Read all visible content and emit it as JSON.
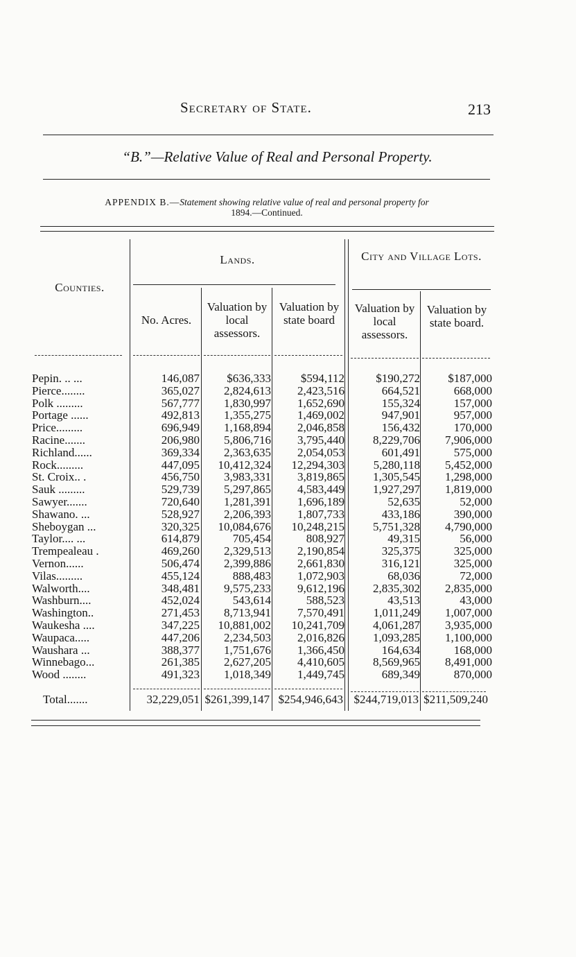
{
  "running_head": "Secretary of State.",
  "page_number": "213",
  "section_title": "“B.”—Relative Value of Real and Personal Property.",
  "caption": {
    "lead": "APPENDIX B.—",
    "text": "Statement showing relative value of real and personal property for",
    "line2": "1894.—Continued."
  },
  "headers": {
    "counties": "Counties.",
    "lands": "Lands.",
    "city_lots": "City and Village Lots.",
    "acres": "No. Acres.",
    "lands_local": "Valuation by local assessors.",
    "lands_state": "Valuation by state board",
    "lots_local": "Valuation by local assessors.",
    "lots_state": "Valuation by state board."
  },
  "rows": [
    [
      "Pepin. .. ...",
      "146,087",
      "$636,333",
      "$594,112",
      "$190,272",
      "$187,000"
    ],
    [
      "Pierce........",
      "365,027",
      "2,824,613",
      "2,423,516",
      "664,521",
      "668,000"
    ],
    [
      "Polk .........",
      "567,777",
      "1,830,997",
      "1,652,690",
      "155,324",
      "157,000"
    ],
    [
      "Portage ......",
      "492,813",
      "1,355,275",
      "1,469,002",
      "947,901",
      "957,000"
    ],
    [
      "Price.........",
      "696,949",
      "1,168,894",
      "2,046,858",
      "156,432",
      "170,000"
    ],
    [
      "Racine.......",
      "206,980",
      "5,806,716",
      "3,795,440",
      "8,229,706",
      "7,906,000"
    ],
    [
      "Richland......",
      "369,334",
      "2,363,635",
      "2,054,053",
      "601,491",
      "575,000"
    ],
    [
      "Rock.........",
      "447,095",
      "10,412,324",
      "12,294,303",
      "5,280,118",
      "5,452,000"
    ],
    [
      "St. Croix..   .",
      "456,750",
      "3,983,331",
      "3,819,865",
      "1,305,545",
      "1,298,000"
    ],
    [
      "Sauk .........",
      "529,739",
      "5,297,865",
      "4,583,449",
      "1,927,297",
      "1,819,000"
    ],
    [
      "Sawyer.......",
      "720,640",
      "1,281,391",
      "1,696,189",
      "52,635",
      "52,000"
    ],
    [
      "Shawano. ...",
      "528,927",
      "2,206,393",
      "1,807,733",
      "433,186",
      "390,000"
    ],
    [
      "Sheboygan ...",
      "320,325",
      "10,084,676",
      "10,248,215",
      "5,751,328",
      "4,790,000"
    ],
    [
      "Taylor.... ...",
      "614,879",
      "705,454",
      "808,927",
      "49,315",
      "56,000"
    ],
    [
      "Trempealeau .",
      "469,260",
      "2,329,513",
      "2,190,854",
      "325,375",
      "325,000"
    ],
    [
      "Vernon......",
      "506,474",
      "2,399,886",
      "2,661,830",
      "316,121",
      "325,000"
    ],
    [
      "Vilas.........",
      "455,124",
      "888,483",
      "1,072,903",
      "68,036",
      "72,000"
    ],
    [
      "Walworth....",
      "348,481",
      "9,575,233",
      "9,612,196",
      "2,835,302",
      "2,835,000"
    ],
    [
      "Washburn....",
      "452,024",
      "543,614",
      "588,523",
      "43,513",
      "43,000"
    ],
    [
      "Washington..",
      "271,453",
      "8,713,941",
      "7,570,491",
      "1,011,249",
      "1,007,000"
    ],
    [
      "Waukesha ....",
      "347,225",
      "10,881,002",
      "10,241,709",
      "4,061,287",
      "3,935,000"
    ],
    [
      "Waupaca.....",
      "447,206",
      "2,234,503",
      "2,016,826",
      "1,093,285",
      "1,100,000"
    ],
    [
      "Waushara ...",
      "388,377",
      "1,751,676",
      "1,366,450",
      "164,634",
      "168,000"
    ],
    [
      "Winnebago...",
      "261,385",
      "2,627,205",
      "4,410,605",
      "8,569,965",
      "8,491,000"
    ],
    [
      "Wood ........",
      "491,323",
      "1,018,349",
      "1,449,745",
      "689,349",
      "870,000"
    ]
  ],
  "total": [
    "Total.......",
    "32,229,051",
    "$261,399,147",
    "$254,946,643",
    "$244,719,013",
    "$211,509,240"
  ]
}
